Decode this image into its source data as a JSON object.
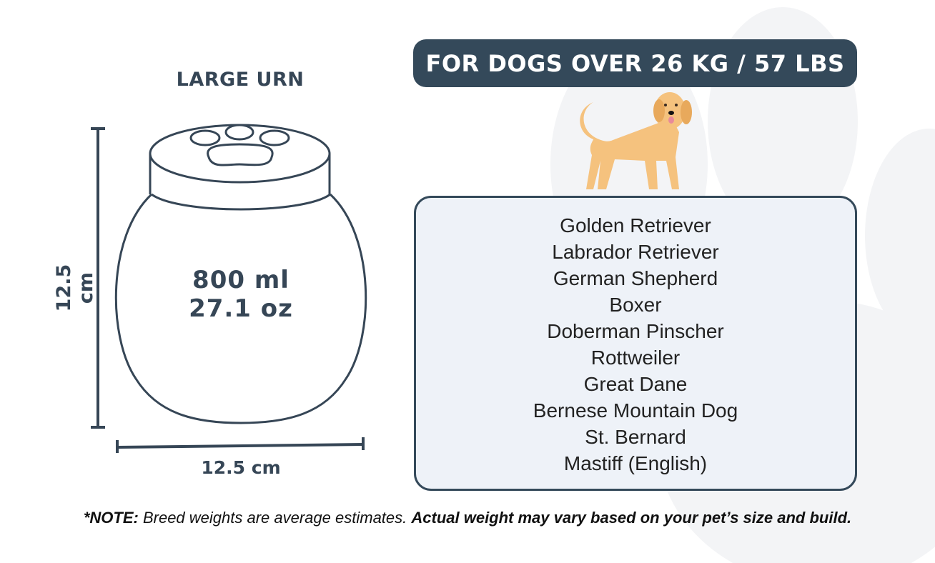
{
  "colors": {
    "dark": "#34495a",
    "box_fill": "#eef2f8",
    "dog": "#f5c27e",
    "paw_bg": "#f3f4f6"
  },
  "urn": {
    "title": "LARGE URN",
    "volume_ml": "800 ml",
    "volume_oz": "27.1 oz",
    "height": "12.5 cm",
    "width": "12.5 cm",
    "icon": "paw-print-icon"
  },
  "header": {
    "label": "FOR DOGS OVER 26 KG / 57 LBS"
  },
  "breeds": [
    "Golden Retriever",
    "Labrador Retriever",
    "German Shepherd",
    "Boxer",
    "Doberman Pinscher",
    "Rottweiler",
    "Great Dane",
    "Bernese Mountain Dog",
    "St. Bernard",
    "Mastiff (English)"
  ],
  "note": {
    "prefix": "*NOTE:",
    "text": " Breed weights are average estimates. ",
    "emphasis": "Actual weight may vary based on your pet’s size and build."
  }
}
